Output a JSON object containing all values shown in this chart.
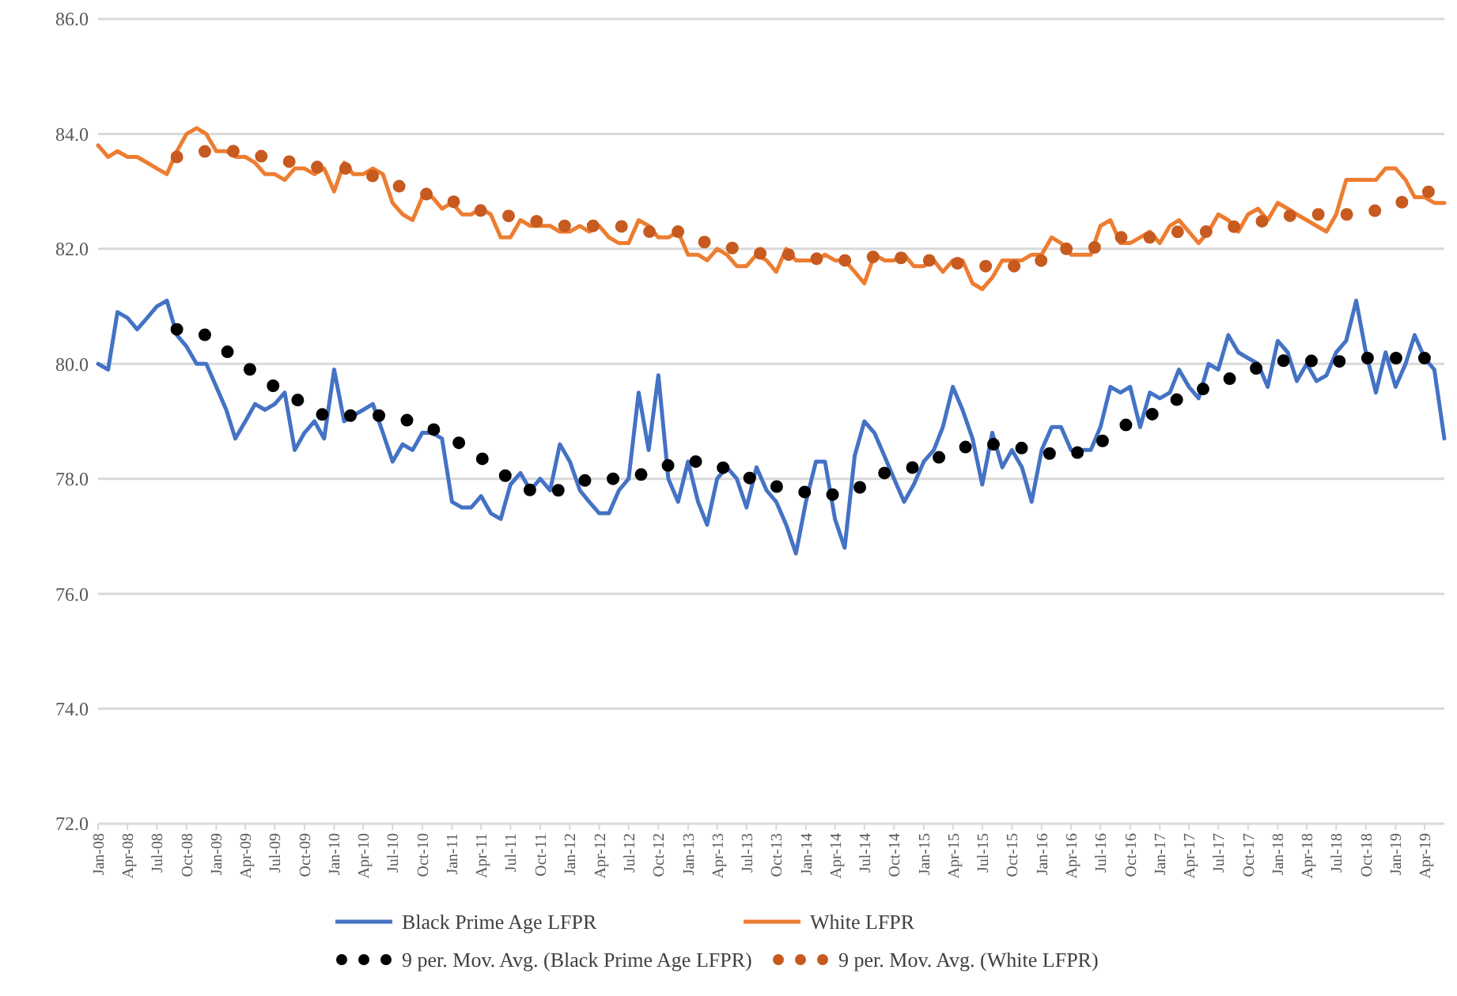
{
  "chart_data": {
    "type": "line",
    "xlim": [
      "2008-01",
      "2019-06"
    ],
    "xticks": [
      {
        "value": "2008-01",
        "label": "Jan-08"
      },
      {
        "value": "2008-04",
        "label": "Apr-08"
      },
      {
        "value": "2008-07",
        "label": "Jul-08"
      },
      {
        "value": "2008-10",
        "label": "Oct-08"
      },
      {
        "value": "2009-01",
        "label": "Jan-09"
      },
      {
        "value": "2009-04",
        "label": "Apr-09"
      },
      {
        "value": "2009-07",
        "label": "Jul-09"
      },
      {
        "value": "2009-10",
        "label": "Oct-09"
      },
      {
        "value": "2010-01",
        "label": "Jan-10"
      },
      {
        "value": "2010-04",
        "label": "Apr-10"
      },
      {
        "value": "2010-07",
        "label": "Jul-10"
      },
      {
        "value": "2010-10",
        "label": "Oct-10"
      },
      {
        "value": "2011-01",
        "label": "Jan-11"
      },
      {
        "value": "2011-04",
        "label": "Apr-11"
      },
      {
        "value": "2011-07",
        "label": "Jul-11"
      },
      {
        "value": "2011-10",
        "label": "Oct-11"
      },
      {
        "value": "2012-01",
        "label": "Jan-12"
      },
      {
        "value": "2012-04",
        "label": "Apr-12"
      },
      {
        "value": "2012-07",
        "label": "Jul-12"
      },
      {
        "value": "2012-10",
        "label": "Oct-12"
      },
      {
        "value": "2013-01",
        "label": "Jan-13"
      },
      {
        "value": "2013-04",
        "label": "Apr-13"
      },
      {
        "value": "2013-07",
        "label": "Jul-13"
      },
      {
        "value": "2013-10",
        "label": "Oct-13"
      },
      {
        "value": "2014-01",
        "label": "Jan-14"
      },
      {
        "value": "2014-04",
        "label": "Apr-14"
      },
      {
        "value": "2014-07",
        "label": "Jul-14"
      },
      {
        "value": "2014-10",
        "label": "Oct-14"
      },
      {
        "value": "2015-01",
        "label": "Jan-15"
      },
      {
        "value": "2015-04",
        "label": "Apr-15"
      },
      {
        "value": "2015-07",
        "label": "Jul-15"
      },
      {
        "value": "2015-10",
        "label": "Oct-15"
      },
      {
        "value": "2016-01",
        "label": "Jan-16"
      },
      {
        "value": "2016-04",
        "label": "Apr-16"
      },
      {
        "value": "2016-07",
        "label": "Jul-16"
      },
      {
        "value": "2016-10",
        "label": "Oct-16"
      },
      {
        "value": "2017-01",
        "label": "Jan-17"
      },
      {
        "value": "2017-04",
        "label": "Apr-17"
      },
      {
        "value": "2017-07",
        "label": "Jul-17"
      },
      {
        "value": "2017-10",
        "label": "Oct-17"
      },
      {
        "value": "2018-01",
        "label": "Jan-18"
      },
      {
        "value": "2018-04",
        "label": "Apr-18"
      },
      {
        "value": "2018-07",
        "label": "Jul-18"
      },
      {
        "value": "2018-10",
        "label": "Oct-18"
      },
      {
        "value": "2019-01",
        "label": "Jan-19"
      },
      {
        "value": "2019-04",
        "label": "Apr-19"
      }
    ],
    "ylim": [
      72,
      86
    ],
    "yticks": [
      {
        "value": 72,
        "label": "72.0"
      },
      {
        "value": 74,
        "label": "74.0"
      },
      {
        "value": 76,
        "label": "76.0"
      },
      {
        "value": 78,
        "label": "78.0"
      },
      {
        "value": 80,
        "label": "80.0"
      },
      {
        "value": 82,
        "label": "82.0"
      },
      {
        "value": 84,
        "label": "84.0"
      },
      {
        "value": 86,
        "label": "86.0"
      }
    ],
    "grid": "y",
    "legend": "bottom",
    "x": [
      "2008-01",
      "2008-02",
      "2008-03",
      "2008-04",
      "2008-05",
      "2008-06",
      "2008-07",
      "2008-08",
      "2008-09",
      "2008-10",
      "2008-11",
      "2008-12",
      "2009-01",
      "2009-02",
      "2009-03",
      "2009-04",
      "2009-05",
      "2009-06",
      "2009-07",
      "2009-08",
      "2009-09",
      "2009-10",
      "2009-11",
      "2009-12",
      "2010-01",
      "2010-02",
      "2010-03",
      "2010-04",
      "2010-05",
      "2010-06",
      "2010-07",
      "2010-08",
      "2010-09",
      "2010-10",
      "2010-11",
      "2010-12",
      "2011-01",
      "2011-02",
      "2011-03",
      "2011-04",
      "2011-05",
      "2011-06",
      "2011-07",
      "2011-08",
      "2011-09",
      "2011-10",
      "2011-11",
      "2011-12",
      "2012-01",
      "2012-02",
      "2012-03",
      "2012-04",
      "2012-05",
      "2012-06",
      "2012-07",
      "2012-08",
      "2012-09",
      "2012-10",
      "2012-11",
      "2012-12",
      "2013-01",
      "2013-02",
      "2013-03",
      "2013-04",
      "2013-05",
      "2013-06",
      "2013-07",
      "2013-08",
      "2013-09",
      "2013-10",
      "2013-11",
      "2013-12",
      "2014-01",
      "2014-02",
      "2014-03",
      "2014-04",
      "2014-05",
      "2014-06",
      "2014-07",
      "2014-08",
      "2014-09",
      "2014-10",
      "2014-11",
      "2014-12",
      "2015-01",
      "2015-02",
      "2015-03",
      "2015-04",
      "2015-05",
      "2015-06",
      "2015-07",
      "2015-08",
      "2015-09",
      "2015-10",
      "2015-11",
      "2015-12",
      "2016-01",
      "2016-02",
      "2016-03",
      "2016-04",
      "2016-05",
      "2016-06",
      "2016-07",
      "2016-08",
      "2016-09",
      "2016-10",
      "2016-11",
      "2016-12",
      "2017-01",
      "2017-02",
      "2017-03",
      "2017-04",
      "2017-05",
      "2017-06",
      "2017-07",
      "2017-08",
      "2017-09",
      "2017-10",
      "2017-11",
      "2017-12",
      "2018-01",
      "2018-02",
      "2018-03",
      "2018-04",
      "2018-05",
      "2018-06",
      "2018-07",
      "2018-08",
      "2018-09",
      "2018-10",
      "2018-11",
      "2018-12",
      "2019-01",
      "2019-02",
      "2019-03",
      "2019-04",
      "2019-05",
      "2019-06"
    ],
    "series": [
      {
        "name": "Black Prime Age LFPR",
        "color": "#4472c4",
        "line_style": "solid",
        "values": [
          80.0,
          79.9,
          80.9,
          80.8,
          80.6,
          80.8,
          81.0,
          81.1,
          80.5,
          80.3,
          80.0,
          80.0,
          79.6,
          79.2,
          78.7,
          79.0,
          79.3,
          79.2,
          79.3,
          79.5,
          78.5,
          78.8,
          79.0,
          78.7,
          79.9,
          79.0,
          79.1,
          79.2,
          79.3,
          78.8,
          78.3,
          78.6,
          78.5,
          78.8,
          78.8,
          78.7,
          77.6,
          77.5,
          77.5,
          77.7,
          77.4,
          77.3,
          77.9,
          78.1,
          77.8,
          78.0,
          77.8,
          78.6,
          78.3,
          77.8,
          77.6,
          77.4,
          77.4,
          77.8,
          78.0,
          79.5,
          78.5,
          79.8,
          78.0,
          77.6,
          78.3,
          77.6,
          77.2,
          78.0,
          78.2,
          78.0,
          77.5,
          78.2,
          77.8,
          77.6,
          77.2,
          76.7,
          77.6,
          78.3,
          78.3,
          77.3,
          76.8,
          78.4,
          79.0,
          78.8,
          78.4,
          78.0,
          77.6,
          77.9,
          78.3,
          78.5,
          78.9,
          79.6,
          79.2,
          78.7,
          77.9,
          78.8,
          78.2,
          78.5,
          78.2,
          77.6,
          78.5,
          78.9,
          78.9,
          78.5,
          78.5,
          78.5,
          78.9,
          79.6,
          79.5,
          79.6,
          78.9,
          79.5,
          79.4,
          79.5,
          79.9,
          79.6,
          79.4,
          80.0,
          79.9,
          80.5,
          80.2,
          80.1,
          80.0,
          79.6,
          80.4,
          80.2,
          79.7,
          80.0,
          79.7,
          79.8,
          80.2,
          80.4,
          81.1,
          80.2,
          79.5,
          80.2,
          79.6,
          80.0,
          80.5,
          80.1,
          79.9,
          78.7
        ]
      },
      {
        "name": "White LFPR",
        "color": "#ed7d31",
        "line_style": "solid",
        "values": [
          83.8,
          83.6,
          83.7,
          83.6,
          83.6,
          83.5,
          83.4,
          83.3,
          83.7,
          84.0,
          84.1,
          84.0,
          83.7,
          83.7,
          83.6,
          83.6,
          83.5,
          83.3,
          83.3,
          83.2,
          83.4,
          83.4,
          83.3,
          83.4,
          83.0,
          83.5,
          83.3,
          83.3,
          83.4,
          83.3,
          82.8,
          82.6,
          82.5,
          82.9,
          82.9,
          82.7,
          82.8,
          82.6,
          82.6,
          82.7,
          82.6,
          82.2,
          82.2,
          82.5,
          82.4,
          82.4,
          82.4,
          82.3,
          82.3,
          82.4,
          82.3,
          82.4,
          82.2,
          82.1,
          82.1,
          82.5,
          82.4,
          82.2,
          82.2,
          82.3,
          81.9,
          81.9,
          81.8,
          82.0,
          81.9,
          81.7,
          81.7,
          81.9,
          81.8,
          81.6,
          82.0,
          81.8,
          81.8,
          81.8,
          81.9,
          81.8,
          81.8,
          81.6,
          81.4,
          81.9,
          81.8,
          81.8,
          81.9,
          81.7,
          81.7,
          81.8,
          81.6,
          81.8,
          81.8,
          81.4,
          81.3,
          81.5,
          81.8,
          81.8,
          81.8,
          81.9,
          81.9,
          82.2,
          82.1,
          81.9,
          81.9,
          81.9,
          82.4,
          82.5,
          82.1,
          82.1,
          82.2,
          82.3,
          82.1,
          82.4,
          82.5,
          82.3,
          82.1,
          82.3,
          82.6,
          82.5,
          82.3,
          82.6,
          82.7,
          82.5,
          82.8,
          82.7,
          82.6,
          82.5,
          82.4,
          82.3,
          82.6,
          83.2,
          83.2,
          83.2,
          83.2,
          83.4,
          83.4,
          83.2,
          82.9,
          82.9,
          82.8,
          82.8
        ]
      },
      {
        "name": "9 per. Mov. Avg. (Black Prime Age LFPR)",
        "color": "#000000",
        "line_style": "dotted",
        "x": [
          "2008-09",
          "2008-12",
          "2009-03",
          "2009-06",
          "2009-09",
          "2009-12",
          "2010-03",
          "2010-06",
          "2010-09",
          "2010-12",
          "2011-03",
          "2011-06",
          "2011-09",
          "2011-12",
          "2012-03",
          "2012-06",
          "2012-09",
          "2012-12",
          "2013-03",
          "2013-06",
          "2013-09",
          "2013-12",
          "2014-03",
          "2014-06",
          "2014-09",
          "2014-12",
          "2015-03",
          "2015-06",
          "2015-09",
          "2015-12",
          "2016-03",
          "2016-06",
          "2016-09",
          "2016-12",
          "2017-03",
          "2017-06",
          "2017-09",
          "2017-12",
          "2018-03",
          "2018-06",
          "2018-09",
          "2018-12",
          "2019-03",
          "2019-06"
        ],
        "values": [
          80.6,
          80.5,
          80.1,
          79.7,
          79.4,
          79.1,
          79.1,
          79.1,
          79.0,
          78.8,
          78.5,
          78.1,
          77.8,
          77.8,
          78.0,
          78.0,
          78.1,
          78.3,
          78.3,
          78.1,
          77.9,
          77.8,
          77.7,
          77.8,
          78.1,
          78.2,
          78.4,
          78.6,
          78.6,
          78.5,
          78.4,
          78.5,
          78.9,
          79.1,
          79.4,
          79.6,
          79.8,
          80.0,
          80.1,
          80.0,
          80.1,
          80.1,
          80.1,
          80.1
        ]
      },
      {
        "name": "9 per. Mov. Avg. (White LFPR)",
        "color": "#c65a1f",
        "line_style": "dotted",
        "x": [
          "2008-09",
          "2008-12",
          "2009-03",
          "2009-06",
          "2009-09",
          "2009-12",
          "2010-03",
          "2010-06",
          "2010-09",
          "2010-12",
          "2011-03",
          "2011-06",
          "2011-09",
          "2011-12",
          "2012-03",
          "2012-06",
          "2012-09",
          "2012-12",
          "2013-03",
          "2013-06",
          "2013-09",
          "2013-12",
          "2014-03",
          "2014-06",
          "2014-09",
          "2014-12",
          "2015-03",
          "2015-06",
          "2015-09",
          "2015-12",
          "2016-03",
          "2016-06",
          "2016-09",
          "2016-12",
          "2017-03",
          "2017-06",
          "2017-09",
          "2017-12",
          "2018-03",
          "2018-06",
          "2018-09",
          "2018-12",
          "2019-03",
          "2019-06"
        ],
        "values": [
          83.6,
          83.7,
          83.7,
          83.6,
          83.5,
          83.4,
          83.4,
          83.2,
          83.0,
          82.9,
          82.7,
          82.6,
          82.5,
          82.4,
          82.4,
          82.4,
          82.3,
          82.3,
          82.1,
          82.0,
          81.9,
          81.9,
          81.8,
          81.8,
          81.9,
          81.8,
          81.8,
          81.7,
          81.7,
          81.7,
          82.0,
          82.0,
          82.2,
          82.2,
          82.3,
          82.3,
          82.4,
          82.5,
          82.6,
          82.6,
          82.6,
          82.7,
          82.9,
          83.1
        ]
      }
    ]
  }
}
